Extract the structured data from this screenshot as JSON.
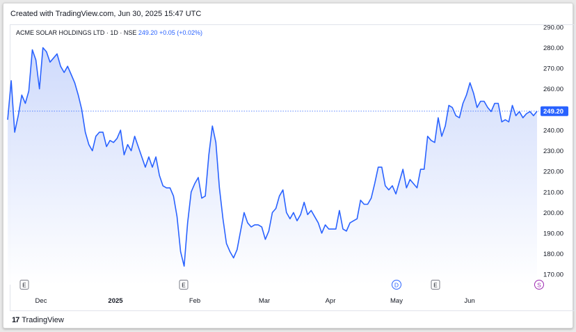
{
  "header": {
    "created": "Created with TradingView.com, Jun 30, 2025 15:47 UTC"
  },
  "legend": {
    "symbol": "ACME SOLAR HOLDINGS LTD · 1D · NSE",
    "price": "249.20",
    "change": "+0.05 (+0.02%)"
  },
  "footer": {
    "brand": "TradingView",
    "logo": "17"
  },
  "colors": {
    "line": "#2962ff",
    "area_top": "#c9d6fb",
    "area_bottom": "#ffffff",
    "last_price_bg": "#2962ff"
  },
  "chart_data": {
    "type": "area",
    "ylim": [
      165,
      292
    ],
    "y_ticks": [
      "290.00",
      "280.00",
      "270.00",
      "260.00",
      "250.00",
      "240.00",
      "230.00",
      "220.00",
      "210.00",
      "200.00",
      "190.00",
      "180.00",
      "170.00"
    ],
    "x_ticks": [
      "Dec",
      "2025",
      "Feb",
      "Mar",
      "Apr",
      "May",
      "Jun"
    ],
    "last_price_label": "249.20",
    "last_price": 249.2,
    "markers": [
      {
        "label": "E",
        "type": "earnings"
      },
      {
        "label": "E",
        "type": "earnings"
      },
      {
        "label": "D",
        "type": "dividend"
      },
      {
        "label": "E",
        "type": "earnings"
      },
      {
        "label": "S",
        "type": "split"
      }
    ],
    "series": [
      {
        "values": [
          245,
          264,
          239,
          247,
          257,
          253,
          259,
          279,
          274,
          260,
          280,
          278,
          273,
          275,
          277,
          271,
          268,
          271,
          267,
          263,
          257,
          250,
          239,
          233,
          230,
          237,
          239,
          239,
          232,
          235,
          234,
          236,
          240,
          228,
          233,
          230,
          237,
          232,
          227,
          222,
          227,
          222,
          227,
          218,
          213,
          212,
          212,
          208,
          198,
          181,
          174,
          195,
          210,
          214,
          217,
          207,
          208,
          228,
          242,
          234,
          212,
          197,
          185,
          181,
          178,
          182,
          191,
          200,
          195,
          193,
          194,
          194,
          193,
          187,
          191,
          200,
          202,
          208,
          211,
          200,
          197,
          200,
          196,
          199,
          205,
          199,
          201,
          198,
          195,
          190,
          194,
          192,
          192,
          192,
          201,
          192,
          191,
          195,
          196,
          197,
          206,
          204,
          204,
          207,
          214,
          222,
          222,
          213,
          211,
          213,
          209,
          215,
          221,
          212,
          216,
          214,
          212,
          221,
          221,
          237,
          235,
          234,
          246,
          237,
          242,
          252,
          251,
          247,
          246,
          253,
          257,
          263,
          258,
          251,
          254,
          254,
          251,
          249,
          253,
          253,
          244,
          245,
          244,
          252,
          247,
          249,
          246,
          248,
          249,
          247,
          249.2
        ]
      }
    ]
  }
}
